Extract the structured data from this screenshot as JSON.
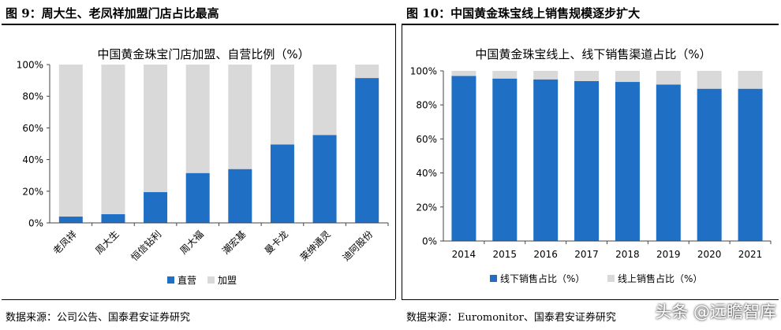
{
  "figures": {
    "left_title": "图 9：周大生、老凤祥加盟门店占比最高",
    "right_title": "图 10：中国黄金珠宝线上销售规模逐步扩大",
    "left_source": "数据来源：公司公告、国泰君安证券研究",
    "right_source": "数据来源：Euromonitor、国泰君安证券研究"
  },
  "watermark": "头条 @远瞻智库",
  "colors": {
    "primary": "#1f6fc5",
    "secondary": "#d9d9d9"
  },
  "chart_data": [
    {
      "type": "bar",
      "stacked": true,
      "percent": true,
      "title": "中国黄金珠宝门店加盟、自营比例（%）",
      "categories": [
        "老凤祥",
        "周大生",
        "恒信钻利",
        "周大福",
        "潮宏基",
        "曼卡龙",
        "莱绅通灵",
        "迪阿股份"
      ],
      "series": [
        {
          "name": "直营",
          "color": "#1f6fc5",
          "values": [
            4,
            5.5,
            19.5,
            31.5,
            34,
            49.5,
            55.5,
            91.5
          ]
        },
        {
          "name": "加盟",
          "color": "#d9d9d9",
          "values": [
            96,
            94.5,
            80.5,
            68.5,
            66,
            50.5,
            44.5,
            8.5
          ]
        }
      ],
      "ylim": [
        0,
        100
      ],
      "yticks": [
        "0%",
        "20%",
        "40%",
        "60%",
        "80%",
        "100%"
      ],
      "legend": "bottom"
    },
    {
      "type": "bar",
      "stacked": true,
      "percent": true,
      "title": "中国黄金珠宝线上、线下销售渠道占比（%）",
      "categories": [
        "2014",
        "2015",
        "2016",
        "2017",
        "2018",
        "2019",
        "2020",
        "2021"
      ],
      "series": [
        {
          "name": "线下销售占比（%）",
          "color": "#1f6fc5",
          "values": [
            97,
            95.5,
            95,
            94,
            93.5,
            92,
            89.5,
            89.5
          ]
        },
        {
          "name": "线上销售占比（%）",
          "color": "#d9d9d9",
          "values": [
            3,
            4.5,
            5,
            6,
            6.5,
            8,
            10.5,
            10.5
          ]
        }
      ],
      "ylim": [
        0,
        100
      ],
      "yticks": [
        "0%",
        "20%",
        "40%",
        "60%",
        "80%",
        "100%"
      ],
      "legend": "bottom"
    }
  ]
}
